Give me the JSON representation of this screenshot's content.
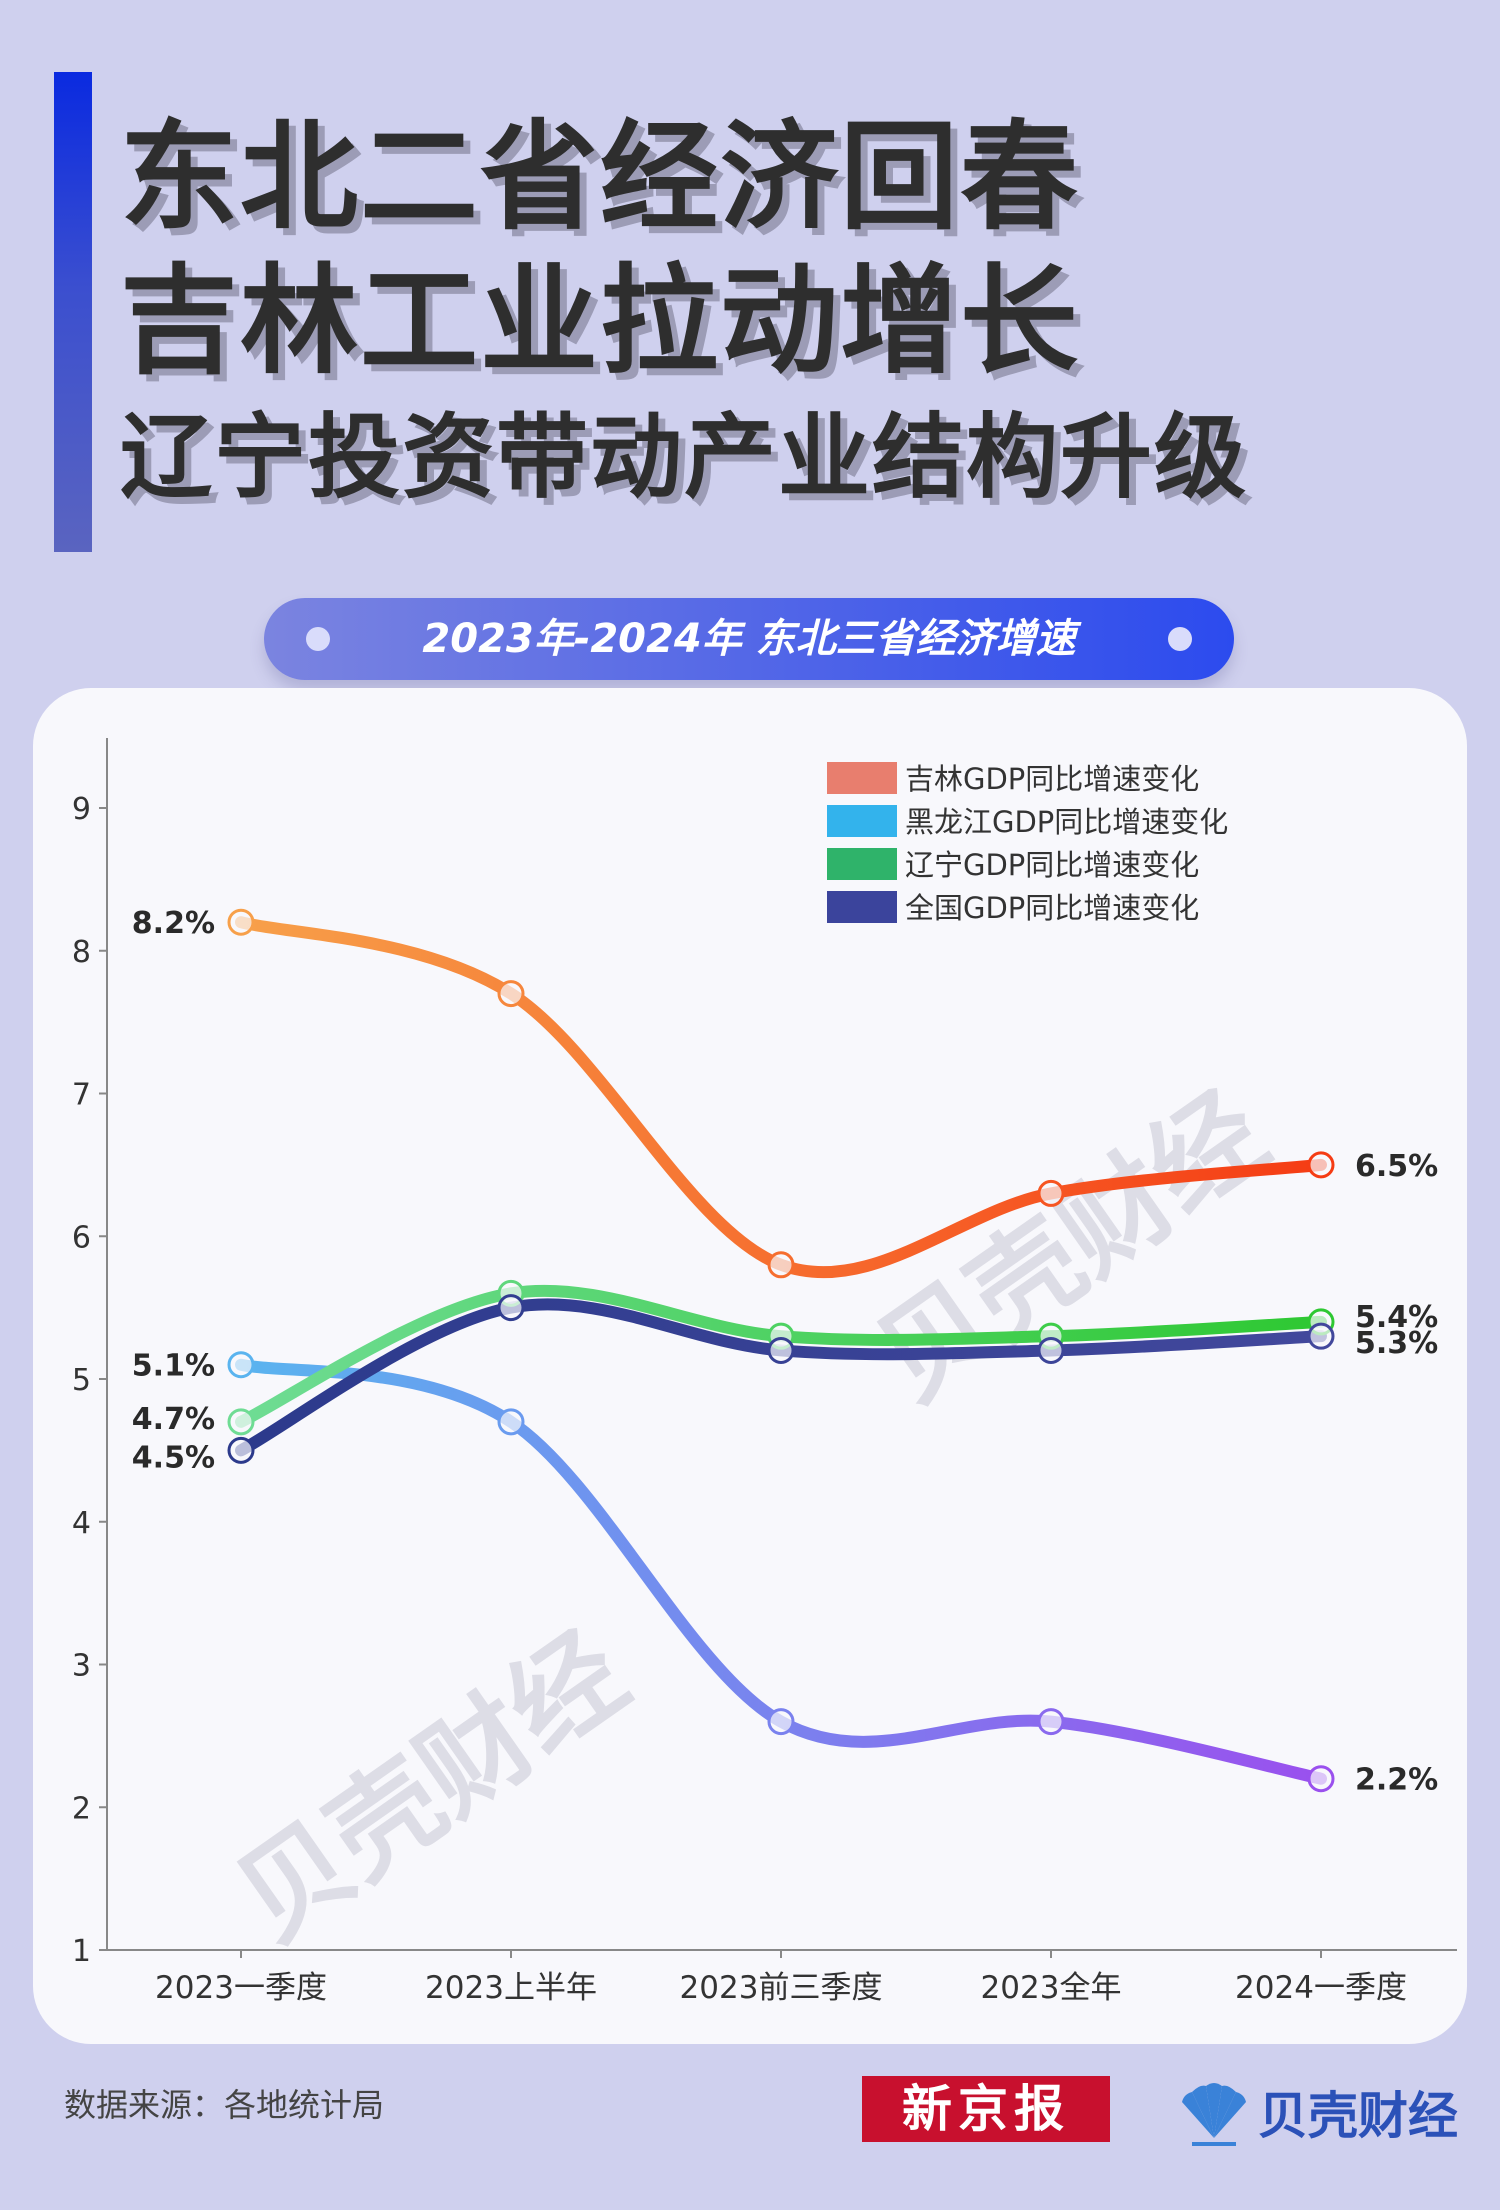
{
  "header": {
    "line1": "东北二省经济回春",
    "line2": "吉林工业拉动增长",
    "line3": "辽宁投资带动产业结构升级"
  },
  "subtitle_pill": "2023年-2024年 东北三省经济增速",
  "chart_data": {
    "type": "line",
    "categories": [
      "2023一季度",
      "2023上半年",
      "2023前三季度",
      "2023全年",
      "2024一季度"
    ],
    "ylim": [
      1,
      9
    ],
    "yticks": [
      "1",
      "2",
      "3",
      "4",
      "5",
      "6",
      "7",
      "8",
      "9"
    ],
    "grid": false,
    "legend_position": "top-right",
    "series": [
      {
        "name": "吉林GDP同比增速变化",
        "values": [
          8.2,
          7.7,
          5.8,
          6.3,
          6.5
        ],
        "legend_color": "#e87e6e",
        "color_start": "#f7a04a",
        "color_end": "#f53c14",
        "first_label": "8.2%",
        "last_label": "6.5%"
      },
      {
        "name": "黑龙江GDP同比增速变化",
        "values": [
          5.1,
          4.7,
          2.6,
          2.6,
          2.2
        ],
        "legend_color": "#33b3ec",
        "color_start": "#5ab4ef",
        "color_end": "#9a50ee",
        "first_label": "5.1%",
        "last_label": "2.2%"
      },
      {
        "name": "辽宁GDP同比增速变化",
        "values": [
          4.7,
          5.6,
          5.3,
          5.3,
          5.4
        ],
        "legend_color": "#2fb36a",
        "color_start": "#6fdc94",
        "color_end": "#2ec832",
        "first_label": "4.7%",
        "last_label": "5.4%"
      },
      {
        "name": "全国GDP同比增速变化",
        "values": [
          4.5,
          5.5,
          5.2,
          5.2,
          5.3
        ],
        "legend_color": "#3b449c",
        "color_start": "#2c3a8c",
        "color_end": "#42489c",
        "first_label": "4.5%",
        "last_label": "5.3%"
      }
    ],
    "watermark": "贝壳财经"
  },
  "footer": {
    "source": "数据来源：各地统计局",
    "logo_xinjingbao": "新京报",
    "logo_beike": "贝壳财经"
  },
  "colors": {
    "background": "#cfd0ee",
    "card": "#f8f8fc",
    "title_text": "#2e2e2e",
    "accent": "#2c4bee"
  }
}
